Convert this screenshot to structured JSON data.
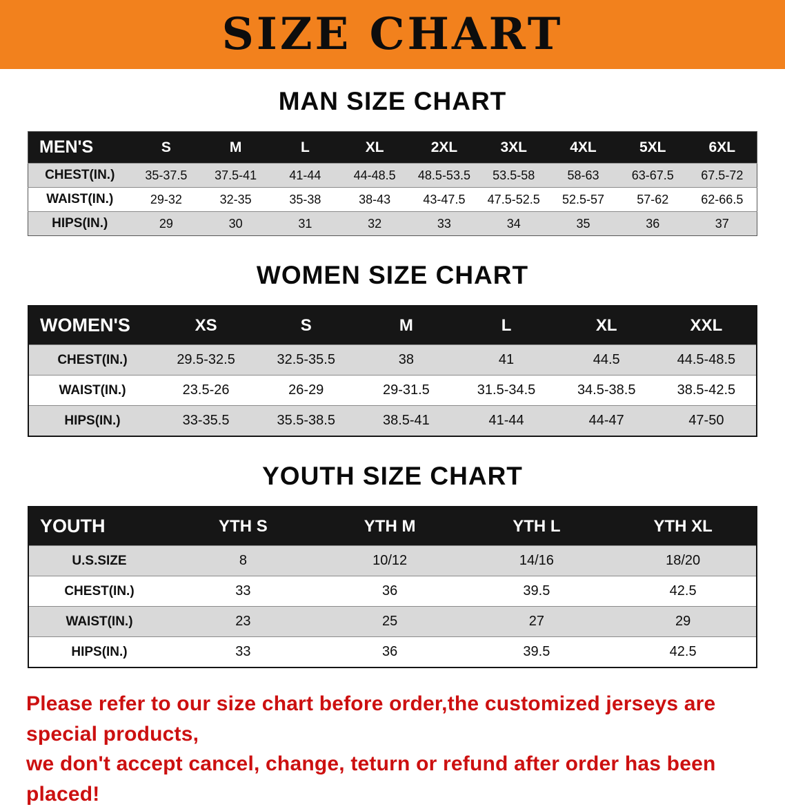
{
  "banner": {
    "title": "SIZE CHART",
    "bg_color": "#f2811d",
    "text_color": "#0d0d0d"
  },
  "sections": {
    "men": {
      "heading": "MAN SIZE CHART"
    },
    "women": {
      "heading": "WOMEN SIZE CHART"
    },
    "youth": {
      "heading": "YOUTH SIZE CHART"
    }
  },
  "tables": {
    "men": {
      "label": "MEN'S",
      "columns": [
        "S",
        "M",
        "L",
        "XL",
        "2XL",
        "3XL",
        "4XL",
        "5XL",
        "6XL"
      ],
      "rows": [
        {
          "label": "CHEST(IN.)",
          "values": [
            "35-37.5",
            "37.5-41",
            "41-44",
            "44-48.5",
            "48.5-53.5",
            "53.5-58",
            "58-63",
            "63-67.5",
            "67.5-72"
          ]
        },
        {
          "label": "WAIST(IN.)",
          "values": [
            "29-32",
            "32-35",
            "35-38",
            "38-43",
            "43-47.5",
            "47.5-52.5",
            "52.5-57",
            "57-62",
            "62-66.5"
          ]
        },
        {
          "label": "HIPS(IN.)",
          "values": [
            "29",
            "30",
            "31",
            "32",
            "33",
            "34",
            "35",
            "36",
            "37"
          ]
        }
      ]
    },
    "women": {
      "label": "WOMEN'S",
      "columns": [
        "XS",
        "S",
        "M",
        "L",
        "XL",
        "XXL"
      ],
      "rows": [
        {
          "label": "CHEST(IN.)",
          "values": [
            "29.5-32.5",
            "32.5-35.5",
            "38",
            "41",
            "44.5",
            "44.5-48.5"
          ]
        },
        {
          "label": "WAIST(IN.)",
          "values": [
            "23.5-26",
            "26-29",
            "29-31.5",
            "31.5-34.5",
            "34.5-38.5",
            "38.5-42.5"
          ]
        },
        {
          "label": "HIPS(IN.)",
          "values": [
            "33-35.5",
            "35.5-38.5",
            "38.5-41",
            "41-44",
            "44-47",
            "47-50"
          ]
        }
      ]
    },
    "youth": {
      "label": "YOUTH",
      "columns": [
        "YTH S",
        "YTH M",
        "YTH L",
        "YTH XL"
      ],
      "rows": [
        {
          "label": "U.S.SIZE",
          "values": [
            "8",
            "10/12",
            "14/16",
            "18/20"
          ]
        },
        {
          "label": "CHEST(IN.)",
          "values": [
            "33",
            "36",
            "39.5",
            "42.5"
          ]
        },
        {
          "label": "WAIST(IN.)",
          "values": [
            "23",
            "25",
            "27",
            "29"
          ]
        },
        {
          "label": "HIPS(IN.)",
          "values": [
            "33",
            "36",
            "39.5",
            "42.5"
          ]
        }
      ]
    }
  },
  "footer": {
    "line1": "Please refer to our size chart before order,the customized jerseys are special products,",
    "line2": "we don't accept cancel, change, teturn or refund after order has been placed!",
    "text_color": "#cc1010"
  }
}
